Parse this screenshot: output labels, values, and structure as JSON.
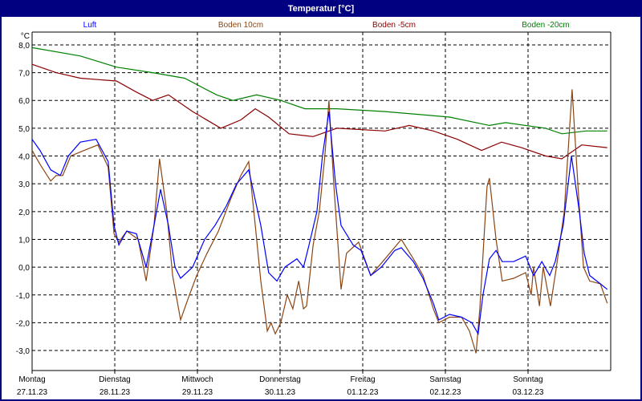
{
  "window": {
    "title": "Temperatur [°C]"
  },
  "colors": {
    "title_bg": "#000080",
    "Luft": "#0000ff",
    "Boden 10cm": "#8b4513",
    "Boden -5cm": "#8b0000",
    "Boden -20cm": "#008000"
  },
  "chart_data": {
    "type": "line",
    "title": "Temperatur [°C]",
    "ylabel": "°C",
    "ylim": [
      -3.72,
      8.46
    ],
    "xlim_hours": [
      0,
      168
    ],
    "grid": true,
    "legend_position": "top",
    "yticks": [
      8,
      7,
      6,
      5,
      4,
      3,
      2,
      1,
      0,
      -1,
      -2,
      -3
    ],
    "ytick_labels": [
      "8,0",
      "7,0",
      "6,0",
      "5,0",
      "4,0",
      "3,0",
      "2,0",
      "1,0",
      "0,0",
      "-1,0",
      "-2,0",
      "-3,0"
    ],
    "xticks": [
      {
        "day": "Montag",
        "date": "27.11.23"
      },
      {
        "day": "Dienstag",
        "date": "28.11.23"
      },
      {
        "day": "Mittwoch",
        "date": "29.11.23"
      },
      {
        "day": "Donnerstag",
        "date": "30.11.23"
      },
      {
        "day": "Freitag",
        "date": "01.12.23"
      },
      {
        "day": "Samstag",
        "date": "02.12.23"
      },
      {
        "day": "Sonntag",
        "date": "03.12.23"
      }
    ],
    "series": [
      {
        "name": "Boden -20cm",
        "points": [
          [
            0,
            7.9
          ],
          [
            14,
            7.6
          ],
          [
            24.5,
            7.2
          ],
          [
            35,
            7.0
          ],
          [
            44.3,
            6.8
          ],
          [
            48.9,
            6.5
          ],
          [
            53.6,
            6.2
          ],
          [
            58.3,
            6.0
          ],
          [
            65.2,
            6.2
          ],
          [
            72.2,
            6.0
          ],
          [
            79.2,
            5.7
          ],
          [
            88.5,
            5.7
          ],
          [
            102.5,
            5.6
          ],
          [
            121.2,
            5.4
          ],
          [
            132.8,
            5.1
          ],
          [
            137.5,
            5.2
          ],
          [
            149.1,
            5.0
          ],
          [
            153.8,
            4.8
          ],
          [
            160.8,
            4.9
          ],
          [
            167,
            4.9
          ]
        ]
      },
      {
        "name": "Boden -5cm",
        "points": [
          [
            0,
            7.3
          ],
          [
            7,
            7.0
          ],
          [
            14,
            6.8
          ],
          [
            24.5,
            6.7
          ],
          [
            30.3,
            6.3
          ],
          [
            35,
            6.0
          ],
          [
            39.6,
            6.2
          ],
          [
            46.6,
            5.6
          ],
          [
            54.8,
            5.0
          ],
          [
            60.6,
            5.3
          ],
          [
            64.8,
            5.7
          ],
          [
            68.7,
            5.4
          ],
          [
            74.6,
            4.8
          ],
          [
            81.6,
            4.7
          ],
          [
            88.5,
            5.0
          ],
          [
            102.5,
            4.9
          ],
          [
            109.5,
            5.1
          ],
          [
            116.5,
            4.9
          ],
          [
            123.5,
            4.6
          ],
          [
            130.5,
            4.2
          ],
          [
            136.3,
            4.5
          ],
          [
            142.1,
            4.3
          ],
          [
            149.1,
            4.0
          ],
          [
            153.8,
            3.9
          ],
          [
            159.6,
            4.4
          ],
          [
            167,
            4.3
          ]
        ]
      },
      {
        "name": "Boden 10cm",
        "points": [
          [
            0,
            4.2
          ],
          [
            2.3,
            3.7
          ],
          [
            5.4,
            3.1
          ],
          [
            7,
            3.3
          ],
          [
            8.9,
            3.3
          ],
          [
            11.2,
            4.0
          ],
          [
            15.1,
            4.2
          ],
          [
            19.1,
            4.4
          ],
          [
            22.1,
            3.6
          ],
          [
            23.8,
            1.2
          ],
          [
            25.2,
            0.9
          ],
          [
            27.5,
            1.3
          ],
          [
            30.8,
            1.0
          ],
          [
            33.1,
            -0.5
          ],
          [
            35.4,
            1.5
          ],
          [
            37,
            3.9
          ],
          [
            39.1,
            2.0
          ],
          [
            40.8,
            -0.3
          ],
          [
            43.1,
            -1.9
          ],
          [
            45.4,
            -1.1
          ],
          [
            47.8,
            -0.3
          ],
          [
            50.8,
            0.5
          ],
          [
            54.1,
            1.3
          ],
          [
            57.8,
            2.5
          ],
          [
            60.6,
            3.3
          ],
          [
            62.9,
            3.8
          ],
          [
            64.8,
            1.5
          ],
          [
            66.4,
            -0.5
          ],
          [
            68.3,
            -2.3
          ],
          [
            69.4,
            -2.0
          ],
          [
            70.6,
            -2.4
          ],
          [
            72.2,
            -2.0
          ],
          [
            74.1,
            -1.0
          ],
          [
            75.7,
            -1.5
          ],
          [
            77.4,
            -0.5
          ],
          [
            78.8,
            -1.5
          ],
          [
            79.7,
            -1.4
          ],
          [
            81.6,
            0.8
          ],
          [
            83.4,
            2.0
          ],
          [
            85,
            4.0
          ],
          [
            86.2,
            6.0
          ],
          [
            87.6,
            3.0
          ],
          [
            89.7,
            -0.8
          ],
          [
            91.3,
            0.5
          ],
          [
            94.8,
            0.9
          ],
          [
            98.3,
            -0.3
          ],
          [
            101.8,
            0.2
          ],
          [
            107.2,
            1.0
          ],
          [
            110.7,
            0.3
          ],
          [
            113.5,
            -0.3
          ],
          [
            116.5,
            -1.5
          ],
          [
            118.1,
            -2.0
          ],
          [
            121.2,
            -1.8
          ],
          [
            124.7,
            -1.8
          ],
          [
            127,
            -2.3
          ],
          [
            128.9,
            -3.1
          ],
          [
            130,
            -1.5
          ],
          [
            132.1,
            2.9
          ],
          [
            132.8,
            3.2
          ],
          [
            134.7,
            1.0
          ],
          [
            136.5,
            -0.5
          ],
          [
            139.8,
            -0.4
          ],
          [
            143.3,
            -0.2
          ],
          [
            144.9,
            -1.0
          ],
          [
            145.6,
            0.0
          ],
          [
            147.3,
            -1.4
          ],
          [
            148.4,
            0.0
          ],
          [
            150.5,
            -1.4
          ],
          [
            152.1,
            -0.1
          ],
          [
            154.5,
            2.0
          ],
          [
            156.8,
            6.4
          ],
          [
            158.7,
            2.5
          ],
          [
            160.1,
            0.0
          ],
          [
            161.9,
            -0.5
          ],
          [
            165,
            -0.6
          ],
          [
            167,
            -1.3
          ]
        ]
      },
      {
        "name": "Luft",
        "points": [
          [
            0,
            4.6
          ],
          [
            2.3,
            4.2
          ],
          [
            5.4,
            3.5
          ],
          [
            8.2,
            3.3
          ],
          [
            10.5,
            4.0
          ],
          [
            14,
            4.5
          ],
          [
            18.6,
            4.6
          ],
          [
            22.1,
            3.8
          ],
          [
            23.8,
            1.5
          ],
          [
            25.2,
            0.8
          ],
          [
            27.5,
            1.3
          ],
          [
            30.3,
            1.2
          ],
          [
            33.1,
            0.0
          ],
          [
            35.4,
            1.5
          ],
          [
            37.3,
            2.8
          ],
          [
            39.6,
            1.5
          ],
          [
            41.5,
            0.0
          ],
          [
            43.1,
            -0.4
          ],
          [
            46.6,
            0.0
          ],
          [
            50.1,
            1.0
          ],
          [
            53.1,
            1.5
          ],
          [
            56.4,
            2.2
          ],
          [
            59.4,
            3.0
          ],
          [
            62.9,
            3.5
          ],
          [
            66.4,
            1.5
          ],
          [
            68.7,
            -0.2
          ],
          [
            71.1,
            -0.5
          ],
          [
            73.4,
            0.0
          ],
          [
            76.9,
            0.3
          ],
          [
            78.8,
            0.0
          ],
          [
            80.4,
            0.8
          ],
          [
            82.7,
            2.0
          ],
          [
            84.3,
            4.0
          ],
          [
            86.2,
            5.6
          ],
          [
            88.1,
            3.0
          ],
          [
            89.7,
            1.5
          ],
          [
            93.2,
            0.8
          ],
          [
            95.5,
            0.6
          ],
          [
            98.3,
            -0.3
          ],
          [
            101.4,
            0.0
          ],
          [
            105.3,
            0.6
          ],
          [
            107.2,
            0.7
          ],
          [
            110.7,
            0.2
          ],
          [
            113.5,
            -0.4
          ],
          [
            116.5,
            -1.3
          ],
          [
            118.1,
            -1.9
          ],
          [
            121.2,
            -1.7
          ],
          [
            124.7,
            -1.8
          ],
          [
            127.7,
            -2.0
          ],
          [
            129.5,
            -2.4
          ],
          [
            130.9,
            -1.0
          ],
          [
            132.8,
            0.3
          ],
          [
            134.7,
            0.6
          ],
          [
            136.5,
            0.2
          ],
          [
            139.8,
            0.2
          ],
          [
            143.3,
            0.4
          ],
          [
            145.6,
            -0.3
          ],
          [
            148,
            0.2
          ],
          [
            150.3,
            -0.3
          ],
          [
            151.9,
            0.2
          ],
          [
            154.2,
            1.5
          ],
          [
            156.6,
            4.0
          ],
          [
            158.9,
            2.0
          ],
          [
            160.3,
            0.5
          ],
          [
            161.9,
            -0.3
          ],
          [
            165,
            -0.6
          ],
          [
            167,
            -0.8
          ]
        ]
      }
    ]
  }
}
